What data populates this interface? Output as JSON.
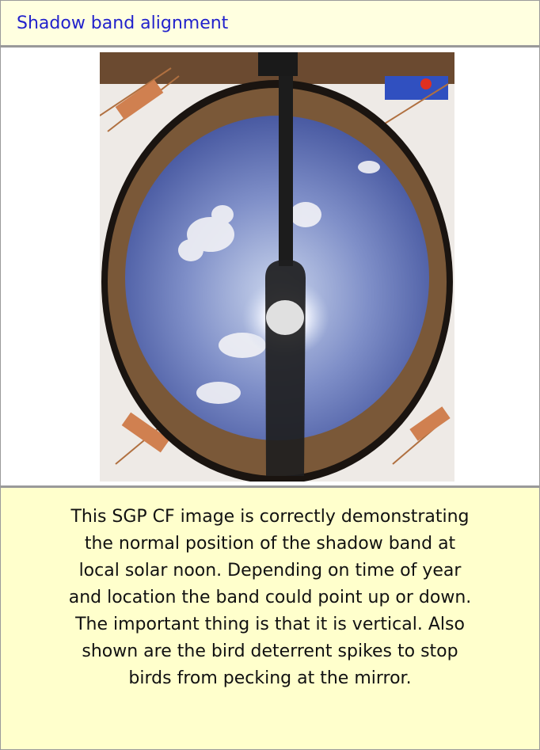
{
  "header": {
    "title": "Shadow band alignment"
  },
  "caption": {
    "lines": [
      "This SGP CF image is correctly demonstrating",
      "the normal position of the shadow band at",
      "local solar noon. Depending on time of year",
      "and location the band could point up or down.",
      "The important thing is that it is vertical. Also",
      "shown are the bird deterrent spikes to stop",
      "birds from pecking at the mirror."
    ]
  }
}
